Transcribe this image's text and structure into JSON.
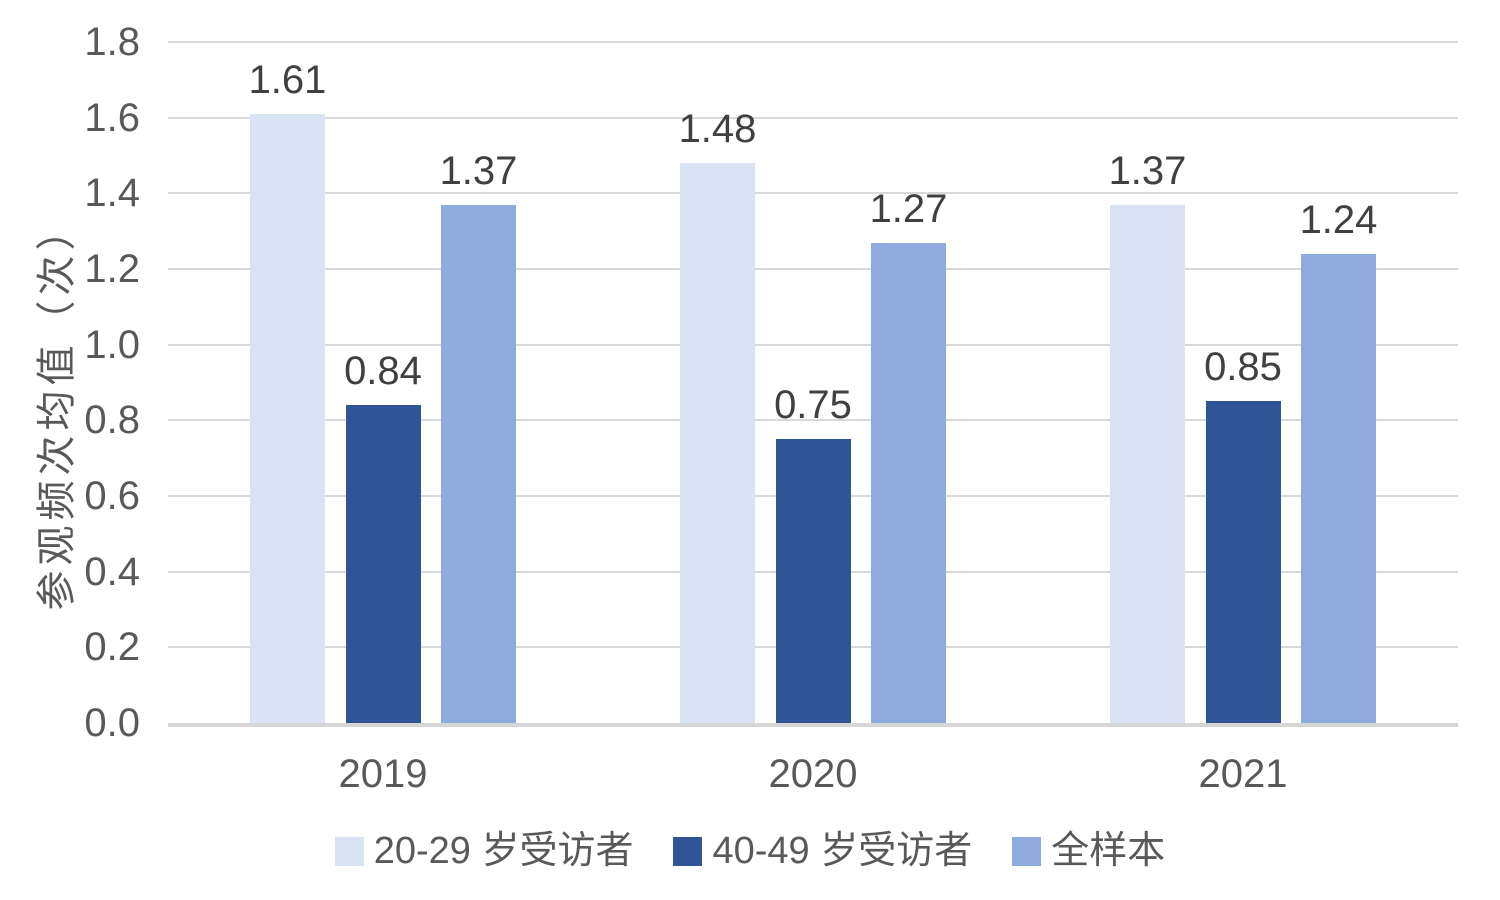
{
  "chart_data": {
    "type": "bar",
    "title": "",
    "ylabel": "参观频次均值（次）",
    "xlabel": "",
    "categories": [
      "2019",
      "2020",
      "2021"
    ],
    "series": [
      {
        "name": "20-29 岁受访者",
        "color": "#dae3f3",
        "values": [
          1.61,
          1.48,
          1.37
        ],
        "labels": [
          "1.61",
          "1.48",
          "1.37"
        ]
      },
      {
        "name": "40-49 岁受访者",
        "color": "#2f5597",
        "values": [
          0.84,
          0.75,
          0.85
        ],
        "labels": [
          "0.84",
          "0.75",
          "0.85"
        ]
      },
      {
        "name": "全样本",
        "color": "#8faadc",
        "values": [
          1.37,
          1.27,
          1.24
        ],
        "labels": [
          "1.37",
          "1.27",
          "1.24"
        ]
      }
    ],
    "ylim": [
      0,
      1.8
    ],
    "y_ticks": [
      "0.0",
      "0.2",
      "0.4",
      "0.6",
      "0.8",
      "1.0",
      "1.2",
      "1.4",
      "1.6",
      "1.8"
    ],
    "grid": true,
    "legend_position": "bottom"
  },
  "colors": {
    "background": "#ffffff",
    "gridline": "#d9d9d9",
    "axis_line": "#d6d6d6",
    "axis_text": "#595959",
    "value_label_text": "#404040"
  }
}
